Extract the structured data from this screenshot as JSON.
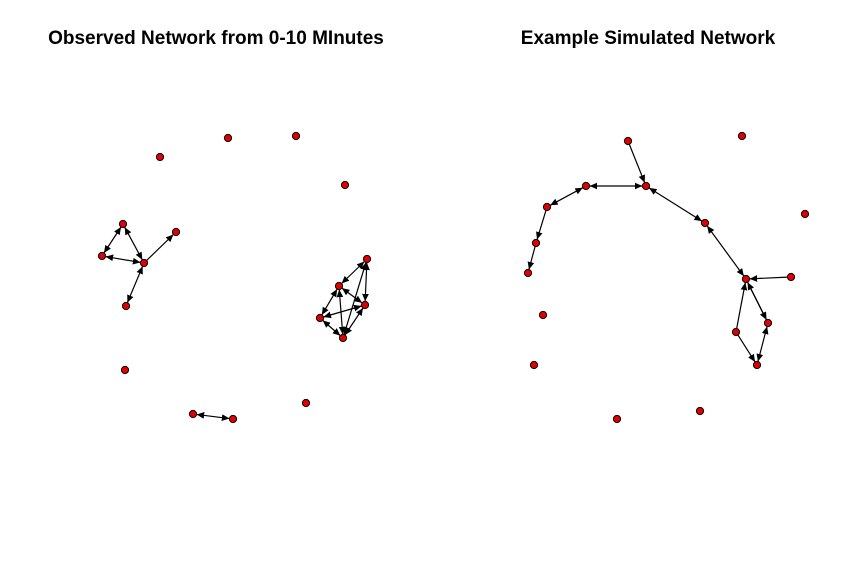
{
  "colors": {
    "node_fill": "#e00000",
    "node_stroke": "#000000",
    "edge": "#000000",
    "background": "#ffffff"
  },
  "panels": [
    {
      "title": "Observed Network from 0-10 MInutes",
      "node_count": 22,
      "edges": [
        {
          "from": 1,
          "to": 2,
          "directed": "both"
        },
        {
          "from": 1,
          "to": 3,
          "directed": "both"
        },
        {
          "from": 2,
          "to": 3,
          "directed": "both"
        },
        {
          "from": 3,
          "to": 4,
          "directed": "to"
        },
        {
          "from": 3,
          "to": 5,
          "directed": "both"
        },
        {
          "from": 6,
          "to": 7,
          "directed": "both"
        },
        {
          "from": 6,
          "to": 8,
          "directed": "both"
        },
        {
          "from": 7,
          "to": 8,
          "directed": "both"
        },
        {
          "from": 7,
          "to": 9,
          "directed": "both"
        },
        {
          "from": 6,
          "to": 9,
          "directed": "both"
        },
        {
          "from": 8,
          "to": 9,
          "directed": "both"
        },
        {
          "from": 10,
          "to": 11,
          "directed": "both"
        }
      ]
    },
    {
      "title": "Example Simulated Network",
      "node_count": 22,
      "edges": [
        {
          "from": 0,
          "to": 1,
          "directed": "to"
        },
        {
          "from": 1,
          "to": 2,
          "directed": "to"
        },
        {
          "from": 2,
          "to": 3,
          "directed": "both"
        },
        {
          "from": 3,
          "to": 4,
          "directed": "from"
        },
        {
          "from": 4,
          "to": 5,
          "directed": "both"
        },
        {
          "from": 5,
          "to": 6,
          "directed": "both"
        },
        {
          "from": 6,
          "to": 7,
          "directed": "both"
        },
        {
          "from": 7,
          "to": 8,
          "directed": "both"
        },
        {
          "from": 9,
          "to": 7,
          "directed": "to"
        },
        {
          "from": 7,
          "to": 10,
          "directed": "both"
        },
        {
          "from": 10,
          "to": 11,
          "directed": "both"
        },
        {
          "from": 12,
          "to": 7,
          "directed": "to"
        },
        {
          "from": 12,
          "to": 11,
          "directed": "to"
        }
      ]
    }
  ]
}
